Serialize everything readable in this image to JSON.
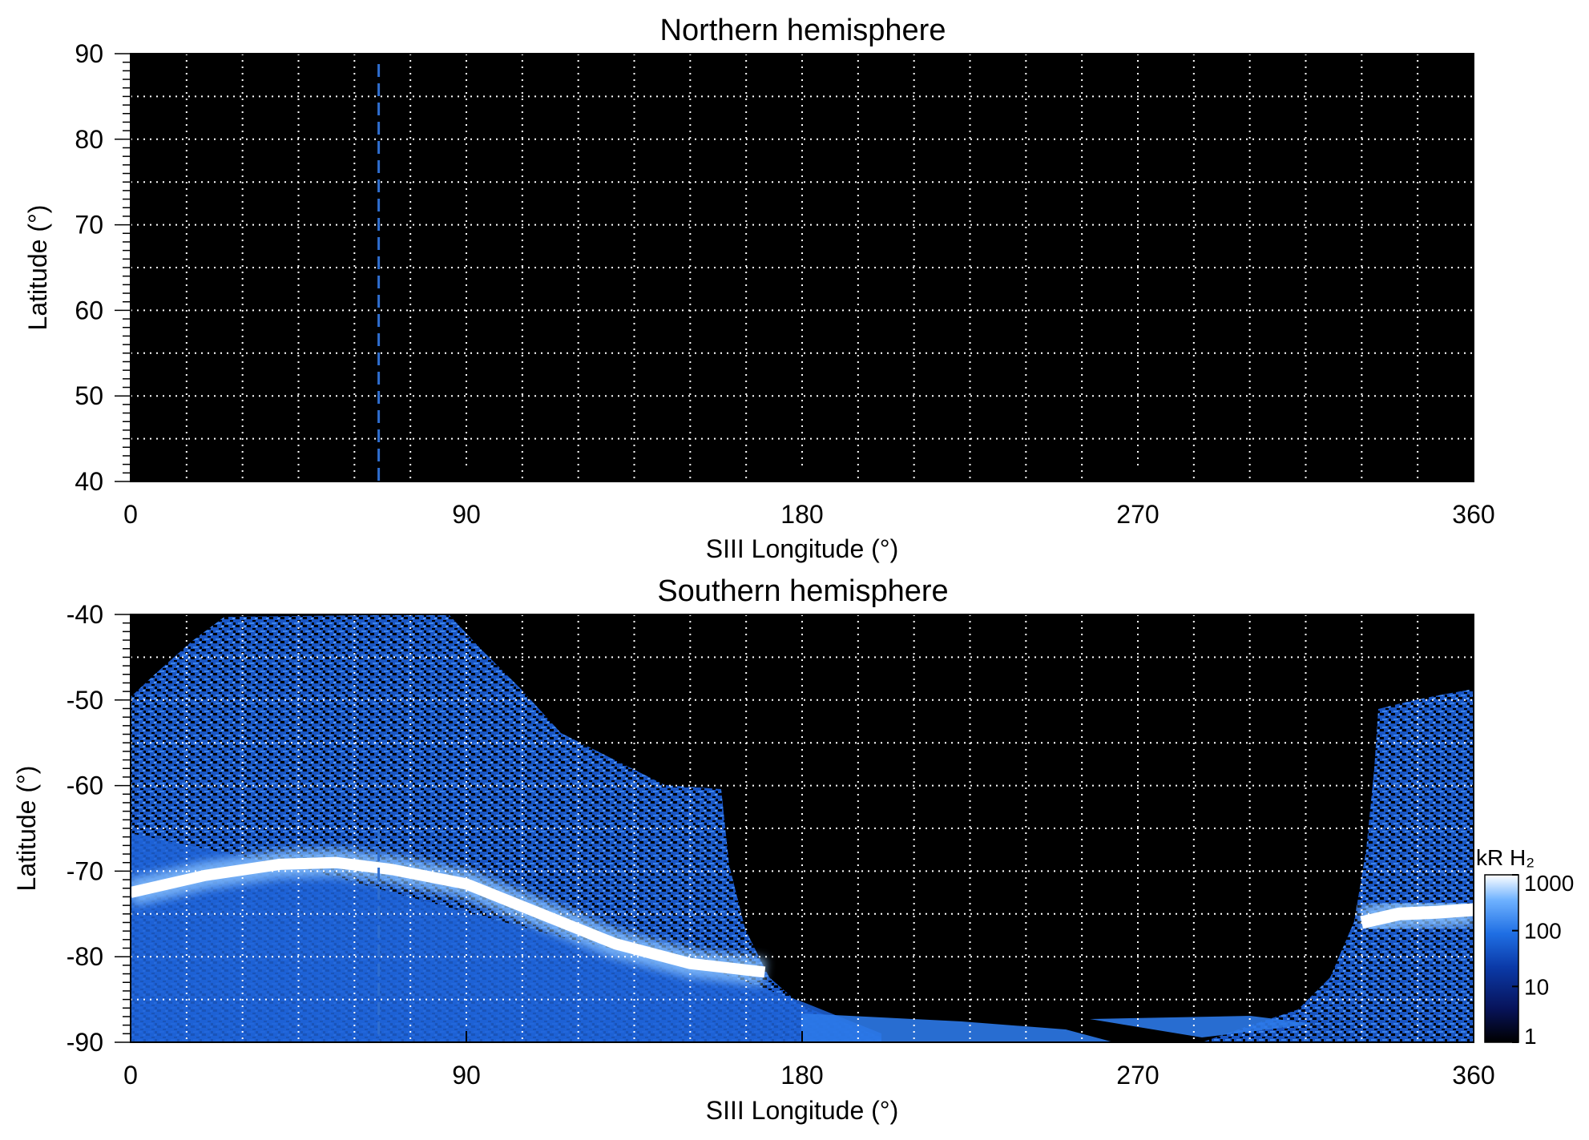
{
  "chart_data": [
    {
      "type": "heatmap",
      "title": "Northern hemisphere",
      "xlabel": "SIII Longitude (°)",
      "ylabel": "Latitude (°)",
      "xlim": [
        0,
        360
      ],
      "ylim": [
        40,
        90
      ],
      "xticks": [
        "0",
        "90",
        "180",
        "270",
        "360"
      ],
      "yticks": [
        "40",
        "50",
        "60",
        "70",
        "80",
        "90"
      ],
      "grid": true,
      "grid_x_step": 15,
      "grid_y_step": 5,
      "background": "#000000",
      "marker_line": {
        "longitude": 66.5,
        "style": "dashed",
        "color": "#2f6ecf"
      },
      "emission": "none"
    },
    {
      "type": "heatmap",
      "title": "Southern hemisphere",
      "xlabel": "SIII Longitude (°)",
      "ylabel": "Latitude (°)",
      "xlim": [
        0,
        360
      ],
      "ylim": [
        -90,
        -40
      ],
      "xticks": [
        "0",
        "90",
        "180",
        "270",
        "360"
      ],
      "yticks": [
        "-40",
        "-50",
        "-60",
        "-70",
        "-80",
        "-90"
      ],
      "grid": true,
      "grid_x_step": 15,
      "grid_y_step": 5,
      "background": "#000000",
      "marker_line": {
        "longitude": 66.5,
        "style": "dashed",
        "color": "#2f6ecf"
      },
      "main_oval": {
        "longitude": [
          0,
          20,
          40,
          55,
          70,
          90,
          110,
          130,
          150,
          170
        ],
        "latitude": [
          -72.5,
          -70.5,
          -69.2,
          -69.0,
          -69.8,
          -71.5,
          -75.0,
          -78.5,
          -80.8,
          -81.8
        ]
      },
      "main_oval_east": {
        "longitude": [
          330,
          340,
          350,
          360
        ],
        "latitude": [
          -76.0,
          -75.0,
          -74.8,
          -74.5
        ]
      },
      "colorbar": {
        "label": "kR H₂",
        "scale": "log",
        "range": [
          1,
          1000
        ],
        "ticks": [
          "1",
          "10",
          "100",
          "1000"
        ],
        "colors": [
          "#000000",
          "#07135a",
          "#0b3aa8",
          "#1f6fe4",
          "#6fb2ff",
          "#ffffff"
        ]
      }
    }
  ]
}
